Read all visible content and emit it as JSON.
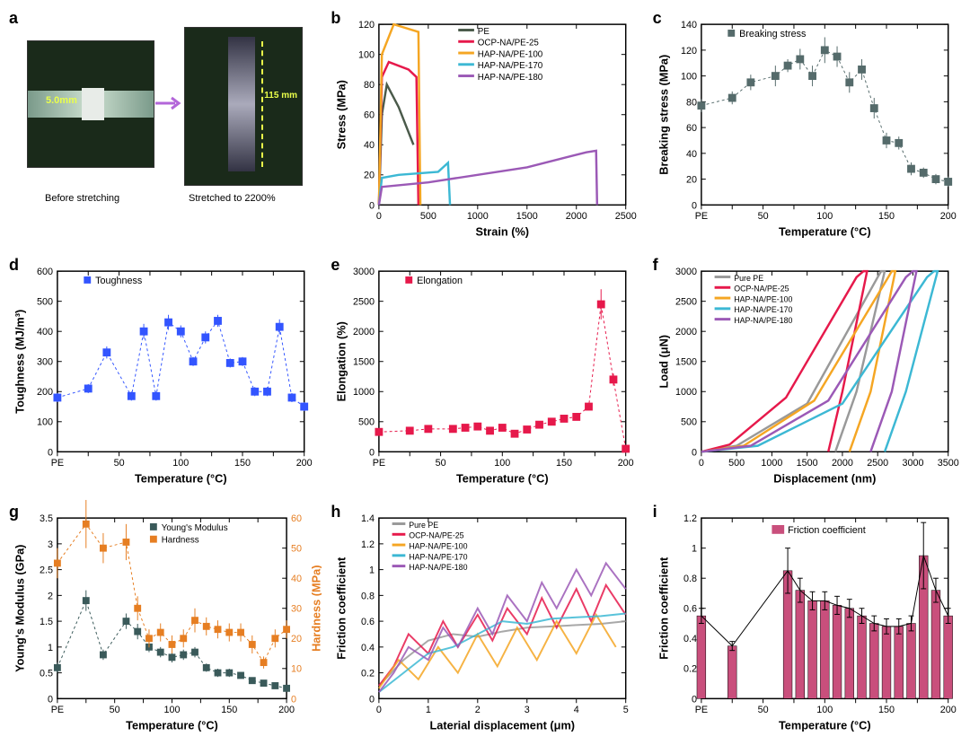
{
  "panel_a": {
    "label": "a",
    "before_caption": "Before stretching",
    "after_caption": "Stretched to 2200%",
    "dim_before": "5.0mm",
    "dim_after": "115 mm",
    "arrow_color": "#b366d9"
  },
  "panel_b": {
    "label": "b",
    "type": "line",
    "xlabel": "Strain (%)",
    "ylabel": "Stress (MPa)",
    "xlim": [
      0,
      2500
    ],
    "ylim": [
      0,
      120
    ],
    "xtick": 500,
    "ytick": 20,
    "series": [
      {
        "name": "PE",
        "color": "#4a5a4a",
        "x": [
          0,
          30,
          80,
          200,
          350
        ],
        "y": [
          0,
          60,
          80,
          65,
          40
        ]
      },
      {
        "name": "OCP-NA/PE-25",
        "color": "#e6194b",
        "x": [
          0,
          30,
          100,
          300,
          380,
          400
        ],
        "y": [
          0,
          85,
          95,
          90,
          85,
          0
        ]
      },
      {
        "name": "HAP-NA/PE-100",
        "color": "#f5a623",
        "x": [
          0,
          30,
          150,
          400,
          420
        ],
        "y": [
          0,
          100,
          120,
          115,
          0
        ]
      },
      {
        "name": "HAP-NA/PE-170",
        "color": "#3cb8d4",
        "x": [
          0,
          30,
          200,
          600,
          700,
          720
        ],
        "y": [
          0,
          18,
          20,
          22,
          28,
          0
        ]
      },
      {
        "name": "HAP-NA/PE-180",
        "color": "#9b59b6",
        "x": [
          0,
          30,
          500,
          1500,
          2100,
          2200,
          2210
        ],
        "y": [
          0,
          12,
          15,
          25,
          35,
          36,
          0
        ]
      }
    ]
  },
  "panel_c": {
    "label": "c",
    "type": "scatter-line",
    "xlabel": "Temperature (°C)",
    "ylabel": "Breaking stress (MPa)",
    "legend": "Breaking stress",
    "ylim": [
      0,
      140
    ],
    "ytick": 20,
    "x_labels": [
      "PE",
      "",
      "50",
      "",
      "100",
      "",
      "150",
      "",
      "200"
    ],
    "marker": "square",
    "color": "#556b6b",
    "x": [
      0,
      25,
      40,
      60,
      70,
      80,
      90,
      100,
      110,
      120,
      130,
      140,
      150,
      160,
      170,
      180,
      190,
      200
    ],
    "y": [
      77,
      83,
      95,
      100,
      108,
      113,
      100,
      120,
      115,
      95,
      105,
      75,
      50,
      48,
      28,
      25,
      20,
      18
    ],
    "err": [
      5,
      5,
      6,
      8,
      5,
      8,
      8,
      10,
      8,
      8,
      8,
      8,
      6,
      5,
      5,
      4,
      4,
      4
    ]
  },
  "panel_d": {
    "label": "d",
    "type": "scatter-line",
    "xlabel": "Temperature (°C)",
    "ylabel": "Toughness (MJ/m³)",
    "legend": "Toughness",
    "ylim": [
      0,
      600
    ],
    "ytick": 100,
    "x_labels": [
      "PE",
      "",
      "50",
      "",
      "100",
      "",
      "150",
      "",
      "200"
    ],
    "marker": "square",
    "color": "#3355ff",
    "x": [
      0,
      25,
      40,
      60,
      70,
      80,
      90,
      100,
      110,
      120,
      130,
      140,
      150,
      160,
      170,
      180,
      190,
      200
    ],
    "y": [
      180,
      210,
      330,
      185,
      400,
      185,
      430,
      400,
      300,
      380,
      435,
      295,
      300,
      200,
      200,
      415,
      180,
      150
    ],
    "err": [
      15,
      15,
      20,
      15,
      25,
      15,
      25,
      20,
      15,
      20,
      20,
      15,
      15,
      15,
      15,
      25,
      15,
      15
    ]
  },
  "panel_e": {
    "label": "e",
    "type": "scatter-line",
    "xlabel": "Temperature (°C)",
    "ylabel": "Elongation (%)",
    "legend": "Elongation",
    "ylim": [
      0,
      3000
    ],
    "ytick": 500,
    "x_labels": [
      "PE",
      "",
      "50",
      "",
      "100",
      "",
      "150",
      "",
      "200"
    ],
    "marker": "square",
    "color": "#e6194b",
    "x": [
      0,
      25,
      40,
      60,
      70,
      80,
      90,
      100,
      110,
      120,
      130,
      140,
      150,
      160,
      170,
      180,
      190,
      200
    ],
    "y": [
      330,
      350,
      380,
      380,
      400,
      420,
      350,
      400,
      300,
      370,
      450,
      500,
      550,
      580,
      750,
      2450,
      1200,
      50
    ],
    "err": [
      30,
      30,
      30,
      30,
      30,
      30,
      30,
      30,
      30,
      30,
      40,
      40,
      50,
      50,
      60,
      250,
      100,
      30
    ]
  },
  "panel_f": {
    "label": "f",
    "type": "line",
    "xlabel": "Displacement (nm)",
    "ylabel": "Load (μN)",
    "xlim": [
      0,
      3500
    ],
    "ylim": [
      0,
      3000
    ],
    "xtick": 500,
    "ytick": 500,
    "series": [
      {
        "name": "Pure PE",
        "color": "#999",
        "x": [
          0,
          500,
          1500,
          2500,
          2550,
          2600,
          2200,
          1900
        ],
        "y": [
          0,
          100,
          800,
          2900,
          3000,
          3000,
          1000,
          0
        ]
      },
      {
        "name": "OCP-NA/PE-25",
        "color": "#e6194b",
        "x": [
          0,
          400,
          1200,
          2200,
          2300,
          2350,
          2000,
          1800
        ],
        "y": [
          0,
          120,
          900,
          2900,
          3000,
          3000,
          1000,
          0
        ]
      },
      {
        "name": "HAP-NA/PE-100",
        "color": "#f5a623",
        "x": [
          0,
          600,
          1600,
          2650,
          2700,
          2750,
          2400,
          2100
        ],
        "y": [
          0,
          100,
          850,
          2900,
          3000,
          3000,
          1000,
          0
        ]
      },
      {
        "name": "HAP-NA/PE-170",
        "color": "#3cb8d4",
        "x": [
          0,
          800,
          2000,
          3200,
          3300,
          3350,
          2900,
          2600
        ],
        "y": [
          0,
          100,
          800,
          2900,
          3000,
          3000,
          1000,
          0
        ]
      },
      {
        "name": "HAP-NA/PE-180",
        "color": "#9b59b6",
        "x": [
          0,
          700,
          1800,
          2900,
          3000,
          3050,
          2700,
          2400
        ],
        "y": [
          0,
          100,
          850,
          2900,
          3000,
          3000,
          1000,
          0
        ]
      }
    ]
  },
  "panel_g": {
    "label": "g",
    "type": "dual-scatter",
    "xlabel": "Temperature (°C)",
    "ylabel": "Young's Modulus (GPa)",
    "ylabel2": "Hardness (MPa)",
    "ylim": [
      0,
      3.5
    ],
    "ytick": 0.5,
    "ylim2": [
      0,
      60
    ],
    "ytick2": 10,
    "x_labels": [
      "PE",
      "",
      "50",
      "",
      "100",
      "",
      "150",
      "",
      "200"
    ],
    "s1": {
      "name": "Young's Modulus",
      "color": "#3a5a5a",
      "x": [
        0,
        25,
        40,
        60,
        70,
        80,
        90,
        100,
        110,
        120,
        130,
        140,
        150,
        160,
        170,
        180,
        190,
        200
      ],
      "y": [
        0.6,
        1.9,
        0.85,
        1.5,
        1.3,
        1.0,
        0.9,
        0.8,
        0.85,
        0.9,
        0.6,
        0.5,
        0.5,
        0.45,
        0.35,
        0.3,
        0.25,
        0.2
      ],
      "err": [
        0.1,
        0.2,
        0.1,
        0.15,
        0.15,
        0.1,
        0.1,
        0.1,
        0.1,
        0.1,
        0.08,
        0.08,
        0.08,
        0.06,
        0.06,
        0.05,
        0.05,
        0.05
      ]
    },
    "s2": {
      "name": "Hardness",
      "color": "#e67e22",
      "x": [
        0,
        25,
        40,
        60,
        70,
        80,
        90,
        100,
        110,
        120,
        130,
        140,
        150,
        160,
        170,
        180,
        190,
        200
      ],
      "y": [
        45,
        58,
        50,
        52,
        30,
        20,
        22,
        18,
        20,
        26,
        24,
        23,
        22,
        22,
        18,
        12,
        20,
        23
      ],
      "err": [
        5,
        8,
        5,
        6,
        4,
        3,
        3,
        3,
        3,
        4,
        3,
        3,
        3,
        3,
        3,
        2,
        3,
        3
      ]
    }
  },
  "panel_h": {
    "label": "h",
    "type": "line",
    "xlabel": "Laterial displacement (μm)",
    "ylabel": "Friction coefficient",
    "xlim": [
      0,
      5
    ],
    "ylim": [
      0,
      1.4
    ],
    "xtick": 1,
    "ytick": 0.2,
    "series": [
      {
        "name": "Pure PE",
        "color": "#999",
        "x": [
          0,
          0.5,
          1,
          1.5,
          2,
          2.5,
          3,
          3.5,
          4,
          4.5,
          5
        ],
        "y": [
          0.1,
          0.3,
          0.45,
          0.5,
          0.48,
          0.52,
          0.55,
          0.56,
          0.57,
          0.58,
          0.6
        ]
      },
      {
        "name": "OCP-NA/PE-25",
        "color": "#e6194b",
        "x": [
          0,
          0.3,
          0.6,
          1,
          1.3,
          1.6,
          2,
          2.3,
          2.6,
          3,
          3.3,
          3.6,
          4,
          4.3,
          4.6,
          5
        ],
        "y": [
          0.1,
          0.25,
          0.5,
          0.35,
          0.6,
          0.4,
          0.65,
          0.45,
          0.7,
          0.5,
          0.78,
          0.55,
          0.85,
          0.6,
          0.88,
          0.65
        ]
      },
      {
        "name": "HAP-NA/PE-100",
        "color": "#f5a623",
        "x": [
          0,
          0.4,
          0.8,
          1.2,
          1.6,
          2,
          2.4,
          2.8,
          3.2,
          3.6,
          4,
          4.4,
          4.8
        ],
        "y": [
          0.08,
          0.3,
          0.15,
          0.4,
          0.2,
          0.5,
          0.25,
          0.55,
          0.3,
          0.6,
          0.35,
          0.65,
          0.4
        ]
      },
      {
        "name": "HAP-NA/PE-170",
        "color": "#3cb8d4",
        "x": [
          0,
          0.5,
          1,
          1.5,
          2,
          2.5,
          3,
          3.5,
          4,
          4.5,
          5
        ],
        "y": [
          0.05,
          0.2,
          0.35,
          0.4,
          0.5,
          0.6,
          0.58,
          0.62,
          0.63,
          0.64,
          0.66
        ]
      },
      {
        "name": "HAP-NA/PE-180",
        "color": "#9b59b6",
        "x": [
          0,
          0.3,
          0.6,
          1,
          1.3,
          1.6,
          2,
          2.3,
          2.6,
          3,
          3.3,
          3.6,
          4,
          4.3,
          4.6,
          5
        ],
        "y": [
          0.05,
          0.2,
          0.4,
          0.3,
          0.55,
          0.4,
          0.7,
          0.5,
          0.8,
          0.6,
          0.9,
          0.7,
          1.0,
          0.8,
          1.05,
          0.85
        ]
      }
    ]
  },
  "panel_i": {
    "label": "i",
    "type": "bar",
    "xlabel": "Temperature (°C)",
    "ylabel": "Friction coefficient",
    "legend": "Friction coefficient",
    "ylim": [
      0,
      1.2
    ],
    "ytick": 0.2,
    "bar_color": "#c94f7c",
    "err_color": "#000",
    "x_labels": [
      "PE",
      "",
      "50",
      "",
      "100",
      "",
      "150",
      "",
      "200"
    ],
    "x": [
      0,
      25,
      70,
      80,
      90,
      100,
      110,
      120,
      130,
      140,
      150,
      160,
      170,
      180,
      190,
      200
    ],
    "y": [
      0.55,
      0.35,
      0.85,
      0.72,
      0.65,
      0.65,
      0.62,
      0.6,
      0.55,
      0.5,
      0.48,
      0.48,
      0.5,
      0.95,
      0.72,
      0.55
    ],
    "err": [
      0.05,
      0.03,
      0.15,
      0.08,
      0.06,
      0.06,
      0.06,
      0.06,
      0.05,
      0.05,
      0.05,
      0.05,
      0.05,
      0.22,
      0.08,
      0.05
    ]
  }
}
